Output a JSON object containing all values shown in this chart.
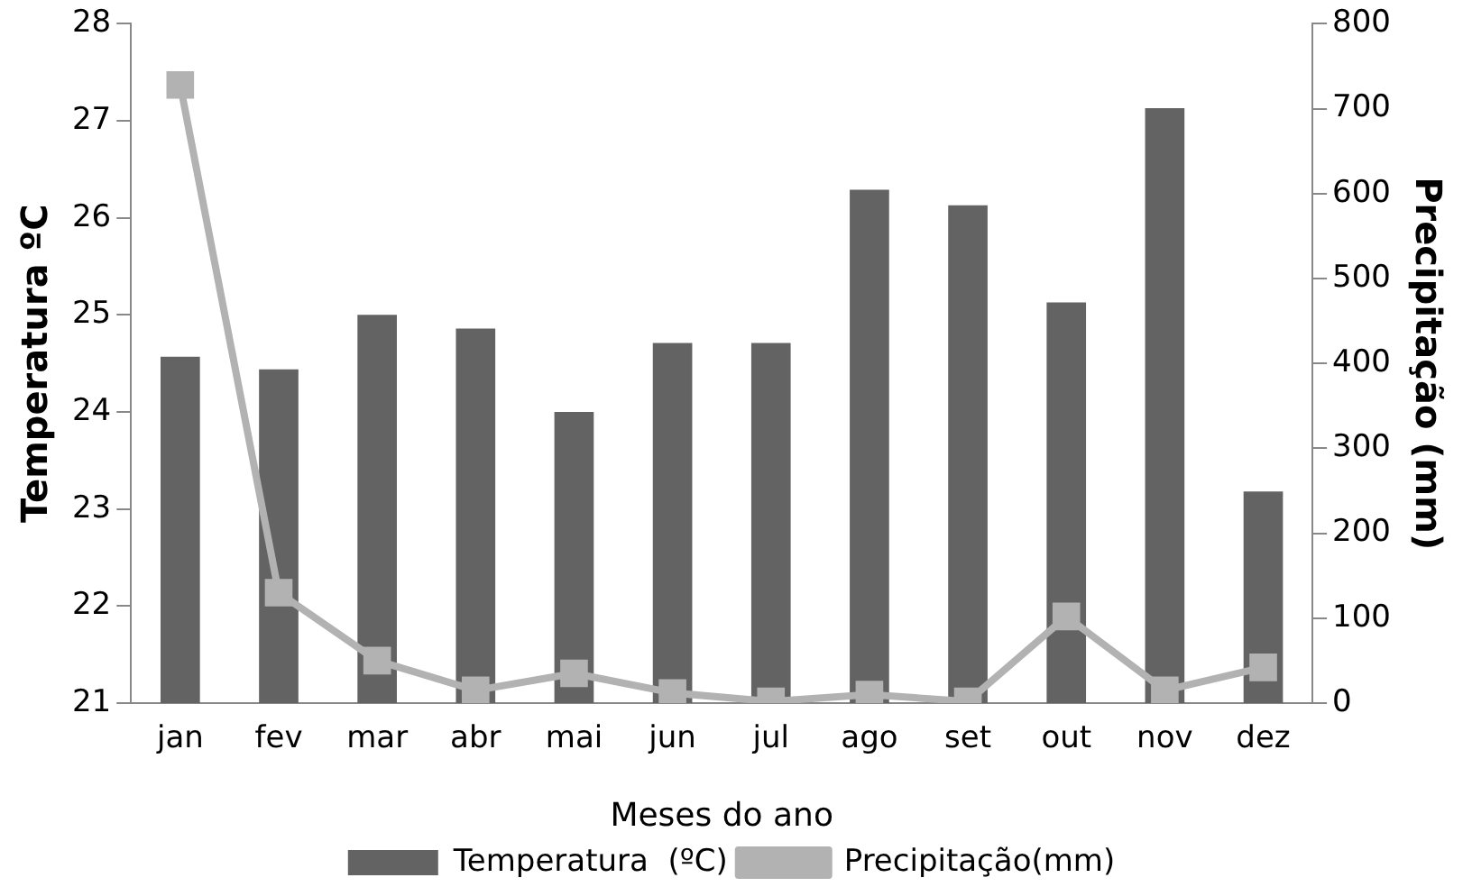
{
  "chart_data": {
    "type": "bar",
    "xlabel": "Meses do ano",
    "ylabel": "Temperatura ºC",
    "y2label": "Precipitação (mm)",
    "categories": [
      "jan",
      "fev",
      "mar",
      "abr",
      "mai",
      "jun",
      "jul",
      "ago",
      "set",
      "out",
      "nov",
      "dez"
    ],
    "series": [
      {
        "name": "Temperatura  (ºC)",
        "color": "#636363",
        "values": [
          24.57,
          24.44,
          25.0,
          24.86,
          24.0,
          24.71,
          24.71,
          26.29,
          26.13,
          25.13,
          27.13,
          23.18
        ]
      },
      {
        "name": "Precipitação(mm)",
        "type": "line",
        "axis": "y2",
        "color": "#b2b2b2",
        "marker": "square",
        "values": [
          728,
          130,
          50,
          15,
          35,
          12,
          2,
          10,
          2,
          102,
          15,
          42
        ]
      }
    ],
    "ylim": [
      21,
      28
    ],
    "yticks": [
      21,
      22,
      23,
      24,
      25,
      26,
      27,
      28
    ],
    "y2lim": [
      0,
      800
    ],
    "y2ticks": [
      0,
      100,
      200,
      300,
      400,
      500,
      600,
      700,
      800
    ],
    "grid": false,
    "legend": "bottom"
  }
}
